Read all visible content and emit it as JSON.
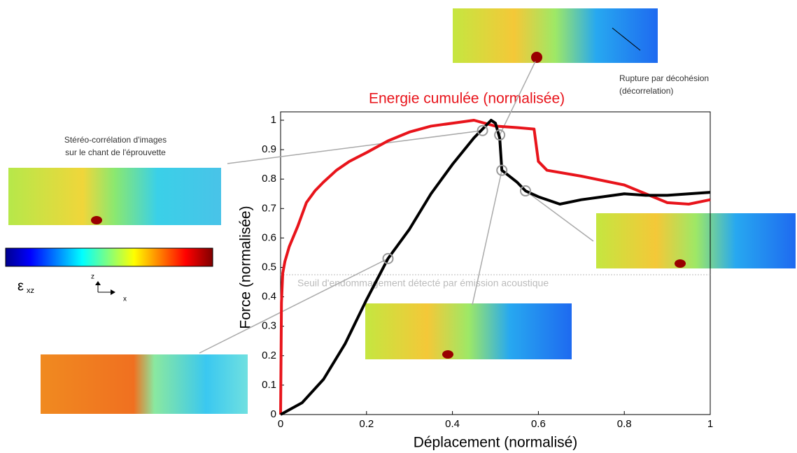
{
  "chart_data": {
    "type": "line",
    "xlabel": "Déplacement (normalisé)",
    "ylabel": "Force (normalisée)",
    "xlim": [
      0,
      1
    ],
    "ylim": [
      0,
      1
    ],
    "xticks": [
      0,
      0.2,
      0.4,
      0.6,
      0.8,
      1
    ],
    "yticks": [
      0,
      0.1,
      0.2,
      0.3,
      0.4,
      0.5,
      0.6,
      0.7,
      0.8,
      0.9,
      1
    ],
    "series": [
      {
        "name": "Energie cumulée (normalisée)",
        "color": "#e8141b",
        "x": [
          0,
          0.002,
          0.005,
          0.01,
          0.02,
          0.04,
          0.06,
          0.08,
          0.1,
          0.13,
          0.16,
          0.2,
          0.25,
          0.3,
          0.35,
          0.4,
          0.45,
          0.5,
          0.55,
          0.59,
          0.6,
          0.62,
          0.7,
          0.8,
          0.9,
          0.95,
          1
        ],
        "values": [
          0,
          0.38,
          0.48,
          0.52,
          0.57,
          0.64,
          0.72,
          0.76,
          0.79,
          0.83,
          0.86,
          0.89,
          0.93,
          0.96,
          0.98,
          0.99,
          1,
          0.98,
          0.975,
          0.97,
          0.86,
          0.83,
          0.81,
          0.78,
          0.72,
          0.715,
          0.73
        ]
      },
      {
        "name": "Force",
        "color": "#000000",
        "x": [
          0,
          0.05,
          0.1,
          0.15,
          0.2,
          0.25,
          0.3,
          0.35,
          0.4,
          0.45,
          0.49,
          0.5,
          0.51,
          0.515,
          0.55,
          0.57,
          0.6,
          0.65,
          0.7,
          0.8,
          0.85,
          0.9,
          1
        ],
        "values": [
          0,
          0.04,
          0.12,
          0.24,
          0.39,
          0.53,
          0.63,
          0.75,
          0.85,
          0.94,
          1,
          0.99,
          0.94,
          0.83,
          0.79,
          0.76,
          0.74,
          0.715,
          0.73,
          0.75,
          0.745,
          0.745,
          0.755
        ]
      }
    ],
    "markers": {
      "x": [
        0.47,
        0.25,
        0.51,
        0.515,
        0.57
      ],
      "values": [
        0.965,
        0.53,
        0.95,
        0.83,
        0.76
      ]
    },
    "threshold": {
      "value": 0.475,
      "label": "Seuil d'endommagement détecté par émission acoustique"
    },
    "annotations": {
      "stereo": [
        "Stéréo-corrélation d'images",
        "sur le chant de l'éprouvette"
      ],
      "rupture": [
        "Rupture par décohésion",
        "(décorrelation)"
      ],
      "strain_symbol": "ε",
      "strain_sub": "xz",
      "axis_z": "z",
      "axis_x": "x"
    }
  }
}
